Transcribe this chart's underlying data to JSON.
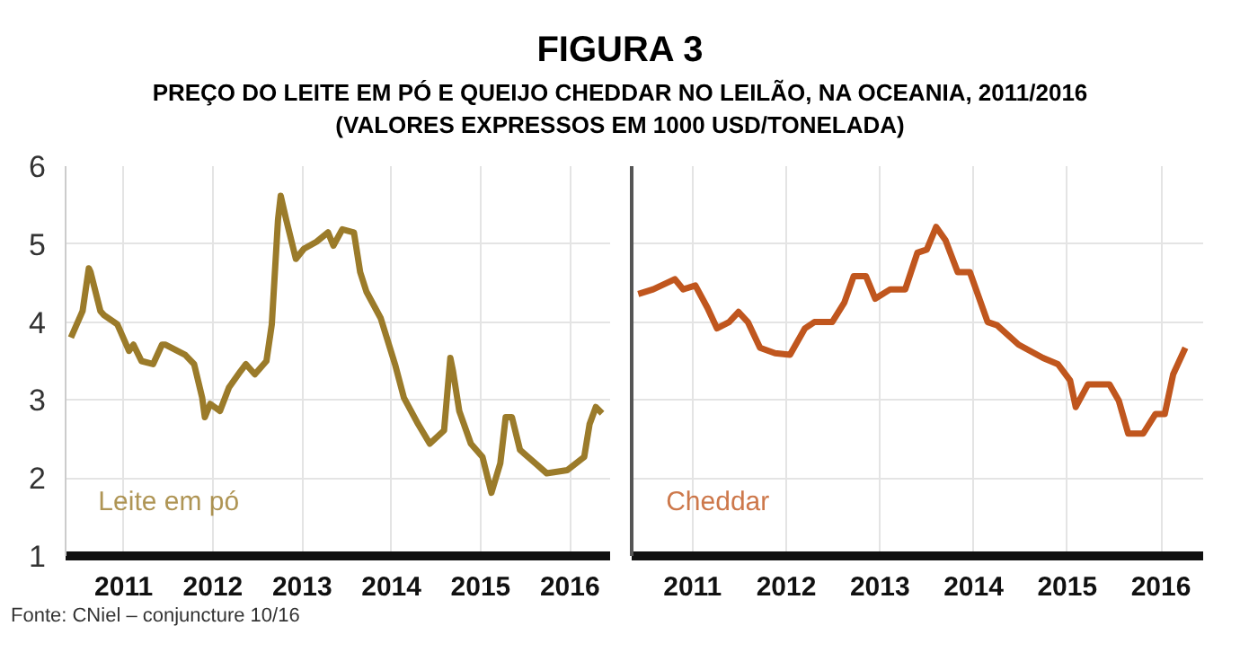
{
  "chart_data": [
    {
      "type": "line",
      "title": "FIGURA 3",
      "subtitle": "PREÇO DO LEITE EM PÓ E QUEIJO CHEDDAR NO LEILÃO, NA OCEANIA, 2011/2016\n(VALORES EXPRESSOS EM 1000 USD/TONELADA)",
      "annotations": [
        "Fonte: CNiel – conjuncture 10/16"
      ],
      "xlim": [
        2010.85,
        2016.95
      ],
      "xticks": [
        {
          "value": 2011.5,
          "label": "2011"
        },
        {
          "value": 2012.5,
          "label": "2012"
        },
        {
          "value": 2013.5,
          "label": "2013"
        },
        {
          "value": 2014.5,
          "label": "2014"
        },
        {
          "value": 2015.5,
          "label": "2015"
        },
        {
          "value": 2016.5,
          "label": "2016"
        }
      ],
      "ylim": [
        1,
        6
      ],
      "yticks": [
        1,
        2,
        3,
        4,
        5,
        6
      ],
      "grid": true,
      "legend": false,
      "series": [
        {
          "name": "Leite em pó",
          "color": "#9b7b2a",
          "x": [
            2010.91,
            2011.04,
            2011.11,
            2011.13,
            2011.24,
            2011.28,
            2011.43,
            2011.56,
            2011.61,
            2011.7,
            2011.83,
            2011.93,
            2011.97,
            2012.19,
            2012.29,
            2012.38,
            2012.41,
            2012.47,
            2012.58,
            2012.68,
            2012.81,
            2012.87,
            2012.97,
            2013.1,
            2013.16,
            2013.23,
            2013.26,
            2013.32,
            2013.43,
            2013.52,
            2013.66,
            2013.79,
            2013.85,
            2013.95,
            2014.08,
            2014.15,
            2014.22,
            2014.38,
            2014.54,
            2014.64,
            2014.8,
            2014.93,
            2015.09,
            2015.16,
            2015.19,
            2015.26,
            2015.39,
            2015.52,
            2015.62,
            2015.72,
            2015.78,
            2015.85,
            2015.94,
            2016.11,
            2016.24,
            2016.47,
            2016.66,
            2016.72,
            2016.79,
            2016.86
          ],
          "values": [
            3.8,
            4.14,
            4.69,
            4.64,
            4.14,
            4.09,
            3.97,
            3.63,
            3.71,
            3.5,
            3.46,
            3.71,
            3.71,
            3.58,
            3.46,
            3.03,
            2.78,
            2.95,
            2.86,
            3.16,
            3.37,
            3.46,
            3.33,
            3.5,
            3.97,
            5.32,
            5.62,
            5.32,
            4.81,
            4.94,
            5.03,
            5.15,
            4.98,
            5.19,
            5.15,
            4.64,
            4.39,
            4.05,
            3.46,
            3.03,
            2.69,
            2.44,
            2.61,
            3.54,
            3.37,
            2.86,
            2.44,
            2.27,
            1.81,
            2.19,
            2.78,
            2.78,
            2.36,
            2.19,
            2.06,
            2.1,
            2.27,
            2.69,
            2.91,
            2.83
          ]
        }
      ]
    },
    {
      "type": "line",
      "tick_labels": "x",
      "xlim": [
        2010.85,
        2016.95
      ],
      "xticks": [
        {
          "value": 2011.5,
          "label": "2011"
        },
        {
          "value": 2012.5,
          "label": "2012"
        },
        {
          "value": 2013.5,
          "label": "2013"
        },
        {
          "value": 2014.5,
          "label": "2014"
        },
        {
          "value": 2015.5,
          "label": "2015"
        },
        {
          "value": 2016.5,
          "label": "2016"
        }
      ],
      "ylim": [
        1,
        6
      ],
      "yticks": [
        1,
        2,
        3,
        4,
        5,
        6
      ],
      "grid": true,
      "legend": false,
      "series": [
        {
          "name": "Cheddar",
          "color": "#c0561e",
          "x": [
            2010.92,
            2011.08,
            2011.31,
            2011.4,
            2011.53,
            2011.66,
            2011.76,
            2011.89,
            2011.99,
            2012.09,
            2012.22,
            2012.38,
            2012.54,
            2012.7,
            2012.8,
            2012.99,
            2013.12,
            2013.22,
            2013.35,
            2013.45,
            2013.61,
            2013.77,
            2013.9,
            2014.0,
            2014.1,
            2014.2,
            2014.33,
            2014.46,
            2014.65,
            2014.75,
            2014.98,
            2015.24,
            2015.4,
            2015.53,
            2015.59,
            2015.72,
            2015.95,
            2016.05,
            2016.15,
            2016.31,
            2016.44,
            2016.54,
            2016.63,
            2016.76
          ],
          "values": [
            4.36,
            4.42,
            4.55,
            4.42,
            4.47,
            4.18,
            3.92,
            4.0,
            4.13,
            4.0,
            3.67,
            3.6,
            3.58,
            3.92,
            4.0,
            4.0,
            4.25,
            4.59,
            4.59,
            4.3,
            4.42,
            4.42,
            4.89,
            4.93,
            5.22,
            5.05,
            4.64,
            4.64,
            4.0,
            3.96,
            3.71,
            3.54,
            3.46,
            3.25,
            2.91,
            3.2,
            3.2,
            2.99,
            2.57,
            2.57,
            2.82,
            2.82,
            3.33,
            3.67
          ]
        }
      ]
    }
  ]
}
